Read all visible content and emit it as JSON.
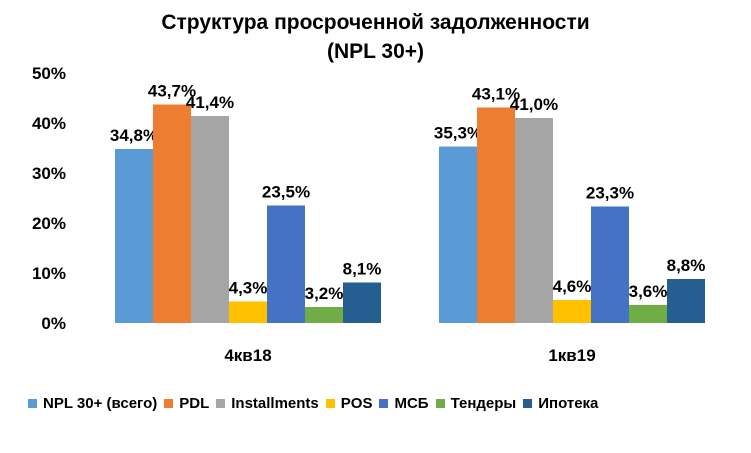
{
  "chart_data": {
    "type": "bar",
    "title_line1": "Структура просроченной  задолженности",
    "title_line2": "(NPL 30+)",
    "categories": [
      "4кв18",
      "1кв19"
    ],
    "ylim": [
      0,
      50
    ],
    "yticks": [
      0,
      10,
      20,
      30,
      40,
      50
    ],
    "ytick_labels": [
      "0%",
      "10%",
      "20%",
      "30%",
      "40%",
      "50%"
    ],
    "grid": false,
    "legend_position": "bottom",
    "series": [
      {
        "name": "NPL 30+ (всего)",
        "color": "#5B9BD5",
        "values": [
          34.8,
          35.3
        ],
        "labels": [
          "34,8%",
          "35,3%"
        ]
      },
      {
        "name": "PDL",
        "color": "#ED7D31",
        "values": [
          43.7,
          43.1
        ],
        "labels": [
          "43,7%",
          "43,1%"
        ]
      },
      {
        "name": "Installments",
        "color": "#A5A5A5",
        "values": [
          41.4,
          41.0
        ],
        "labels": [
          "41,4%",
          "41,0%"
        ]
      },
      {
        "name": "POS",
        "color": "#FFC000",
        "values": [
          4.3,
          4.6
        ],
        "labels": [
          "4,3%",
          "4,6%"
        ]
      },
      {
        "name": "МСБ",
        "color": "#4472C4",
        "values": [
          23.5,
          23.3
        ],
        "labels": [
          "23,5%",
          "23,3%"
        ]
      },
      {
        "name": "Тендеры",
        "color": "#70AD47",
        "values": [
          3.2,
          3.6
        ],
        "labels": [
          "3,2%",
          "3,6%"
        ]
      },
      {
        "name": "Ипотека",
        "color": "#255E91",
        "values": [
          8.1,
          8.8
        ],
        "labels": [
          "8,1%",
          "8,8%"
        ]
      }
    ]
  }
}
